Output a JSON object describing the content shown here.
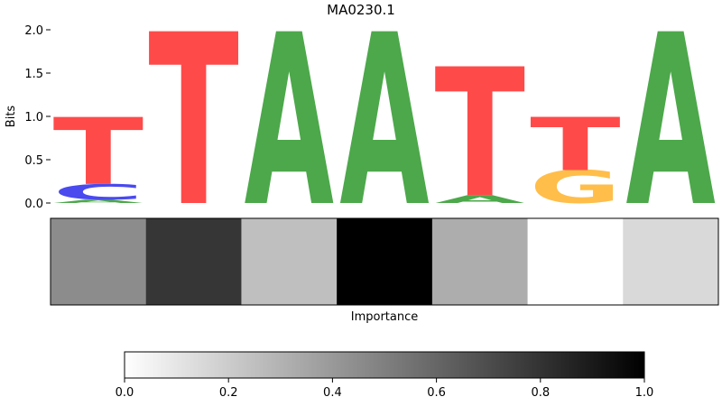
{
  "chart_data": [
    {
      "type": "sequence-logo",
      "title": "MA0230.1",
      "ylabel": "Bits",
      "ylim": [
        0,
        2.0
      ],
      "yticks": [
        "0.0",
        "0.5",
        "1.0",
        "1.5",
        "2.0"
      ],
      "colors": {
        "A": "#4ca84a",
        "C": "#4a4aef",
        "G": "#ffbe4a",
        "T": "#ff4a4a"
      },
      "positions": [
        [
          {
            "letter": "A",
            "bits": 0.04
          },
          {
            "letter": "C",
            "bits": 0.18
          },
          {
            "letter": "T",
            "bits": 0.78
          }
        ],
        [
          {
            "letter": "T",
            "bits": 2.0
          }
        ],
        [
          {
            "letter": "A",
            "bits": 2.0
          }
        ],
        [
          {
            "letter": "A",
            "bits": 2.0
          }
        ],
        [
          {
            "letter": "A",
            "bits": 0.09
          },
          {
            "letter": "T",
            "bits": 1.5
          }
        ],
        [
          {
            "letter": "G",
            "bits": 0.38
          },
          {
            "letter": "T",
            "bits": 0.62
          }
        ],
        [
          {
            "letter": "A",
            "bits": 2.0
          }
        ]
      ]
    },
    {
      "type": "heatmap",
      "xlabel": "Importance",
      "values": [
        0.45,
        0.79,
        0.25,
        1.0,
        0.32,
        0.0,
        0.15
      ],
      "colormap": "Greys",
      "colorbar": {
        "min": 0.0,
        "max": 1.0,
        "ticks": [
          "0.0",
          "0.2",
          "0.4",
          "0.6",
          "0.8",
          "1.0"
        ]
      }
    }
  ]
}
